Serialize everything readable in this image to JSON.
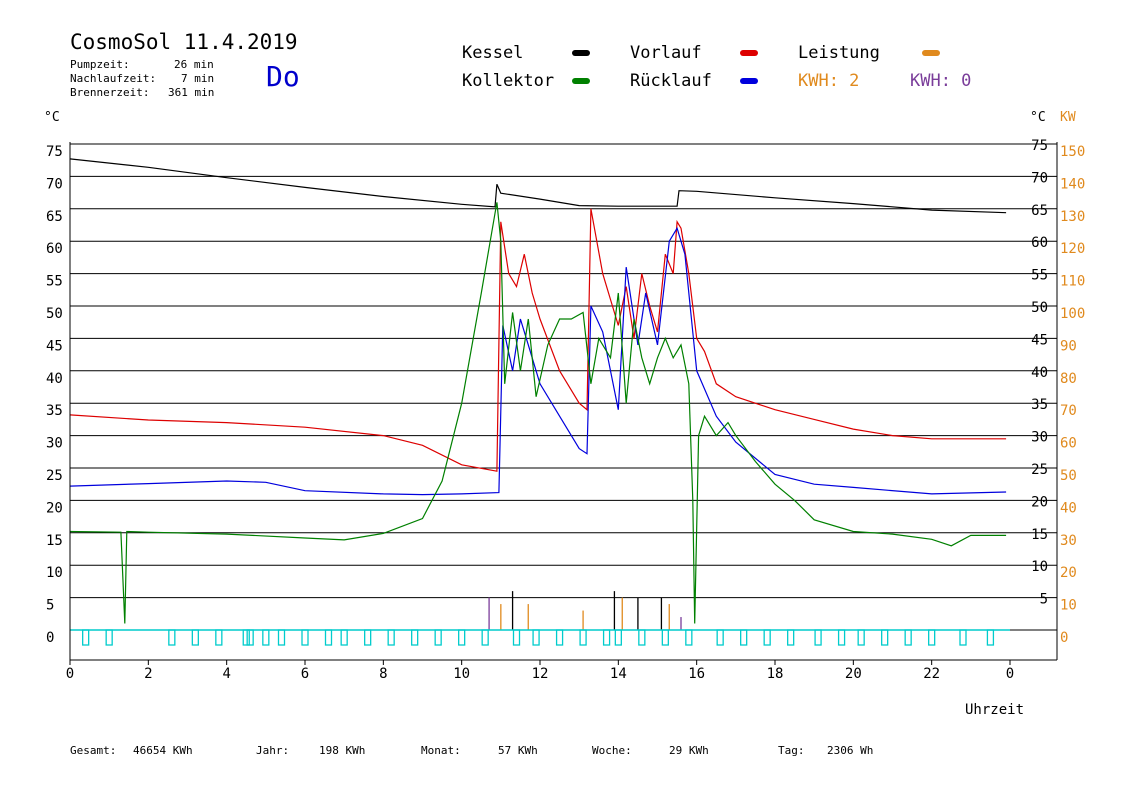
{
  "header": {
    "title": "CosmoSol 11.4.2019",
    "day": "Do",
    "stats": [
      {
        "label": "Pumpzeit:",
        "value": "26 min"
      },
      {
        "label": "Nachlaufzeit:",
        "value": "7 min"
      },
      {
        "label": "Brennerzeit:",
        "value": "361 min"
      }
    ]
  },
  "legend": {
    "kessel": "Kessel",
    "vorlauf": "Vorlauf",
    "leistung": "Leistung",
    "kollektor": "Kollektor",
    "ruecklauf": "Rücklauf",
    "kwh_orange": "KWH: 2",
    "kwh_purple": "KWH: 0"
  },
  "colors": {
    "kessel": "#000000",
    "vorlauf": "#dd0000",
    "leistung": "#e08a1e",
    "kollektor": "#008000",
    "ruecklauf": "#0000dd",
    "purple": "#7a3d9a",
    "pump": "#00cccc"
  },
  "axis_units": {
    "left": "°C",
    "right_c": "°C",
    "right_kw": "KW"
  },
  "footer": {
    "gesamt": {
      "label": "Gesamt:",
      "value": "46654 KWh"
    },
    "jahr": {
      "label": "Jahr:",
      "value": "198 KWh"
    },
    "monat": {
      "label": "Monat:",
      "value": "57 KWh"
    },
    "woche": {
      "label": "Woche:",
      "value": "29 KWh"
    },
    "tag": {
      "label": "Tag:",
      "value": "2306 Wh"
    }
  },
  "chart_data": {
    "type": "line",
    "title": "CosmoSol 11.4.2019",
    "xlabel": "Uhrzeit",
    "ylabel": "°C",
    "xlim": [
      0,
      24
    ],
    "ylim": [
      0,
      75
    ],
    "y2lim": [
      0,
      150
    ],
    "y2label": "KW",
    "x_ticks": [
      "0",
      "2",
      "4",
      "6",
      "8",
      "10",
      "12",
      "14",
      "16",
      "18",
      "20",
      "22",
      "0"
    ],
    "y_ticks_left": [
      "0",
      "5",
      "10",
      "15",
      "20",
      "25",
      "30",
      "35",
      "40",
      "45",
      "50",
      "55",
      "60",
      "65",
      "70",
      "75"
    ],
    "y_ticks_right_c": [
      "5",
      "10",
      "15",
      "20",
      "25",
      "30",
      "35",
      "40",
      "45",
      "50",
      "55",
      "60",
      "65",
      "70",
      "75"
    ],
    "y_ticks_right_kw": [
      "0",
      "10",
      "20",
      "30",
      "40",
      "50",
      "60",
      "70",
      "80",
      "90",
      "100",
      "110",
      "120",
      "130",
      "140",
      "150"
    ],
    "grid": true,
    "series": [
      {
        "name": "Kessel",
        "color": "#000000",
        "points": [
          [
            0,
            72.7
          ],
          [
            2,
            71.4
          ],
          [
            4,
            69.8
          ],
          [
            6,
            68.3
          ],
          [
            8,
            66.9
          ],
          [
            10,
            65.7
          ],
          [
            10.85,
            65.3
          ],
          [
            10.9,
            68.8
          ],
          [
            11,
            67.4
          ],
          [
            12,
            66.5
          ],
          [
            13,
            65.5
          ],
          [
            14,
            65.4
          ],
          [
            15,
            65.4
          ],
          [
            15.5,
            65.4
          ],
          [
            15.55,
            67.8
          ],
          [
            16,
            67.7
          ],
          [
            18,
            66.7
          ],
          [
            20,
            65.8
          ],
          [
            22,
            64.8
          ],
          [
            23.9,
            64.4
          ]
        ]
      },
      {
        "name": "Vorlauf",
        "color": "#dd0000",
        "points": [
          [
            0,
            33.2
          ],
          [
            2,
            32.4
          ],
          [
            4,
            32.0
          ],
          [
            6,
            31.3
          ],
          [
            8,
            30.0
          ],
          [
            9,
            28.5
          ],
          [
            10,
            25.5
          ],
          [
            10.9,
            24.5
          ],
          [
            11,
            63
          ],
          [
            11.2,
            55
          ],
          [
            11.4,
            53
          ],
          [
            11.6,
            58
          ],
          [
            11.8,
            52
          ],
          [
            12,
            48
          ],
          [
            12.5,
            40
          ],
          [
            13,
            35
          ],
          [
            13.2,
            34
          ],
          [
            13.3,
            65
          ],
          [
            13.6,
            55
          ],
          [
            13.9,
            49
          ],
          [
            14,
            47
          ],
          [
            14.2,
            53
          ],
          [
            14.4,
            45
          ],
          [
            14.6,
            55
          ],
          [
            14.8,
            50
          ],
          [
            15,
            46
          ],
          [
            15.2,
            58
          ],
          [
            15.4,
            55
          ],
          [
            15.5,
            63
          ],
          [
            15.6,
            62
          ],
          [
            15.8,
            55
          ],
          [
            16,
            45
          ],
          [
            16.2,
            43
          ],
          [
            16.5,
            38
          ],
          [
            17,
            36
          ],
          [
            18,
            34
          ],
          [
            19,
            32.5
          ],
          [
            20,
            31
          ],
          [
            21,
            30
          ],
          [
            22,
            29.5
          ],
          [
            23.9,
            29.5
          ]
        ]
      },
      {
        "name": "Rücklauf",
        "color": "#0000dd",
        "points": [
          [
            0,
            22.2
          ],
          [
            2,
            22.6
          ],
          [
            4,
            23.0
          ],
          [
            5,
            22.8
          ],
          [
            6,
            21.5
          ],
          [
            8,
            21.0
          ],
          [
            9,
            20.9
          ],
          [
            10,
            21.0
          ],
          [
            10.95,
            21.2
          ],
          [
            11.05,
            47
          ],
          [
            11.3,
            40
          ],
          [
            11.5,
            48
          ],
          [
            11.7,
            44
          ],
          [
            12,
            38
          ],
          [
            12.5,
            33
          ],
          [
            13,
            28
          ],
          [
            13.2,
            27.2
          ],
          [
            13.3,
            50
          ],
          [
            13.6,
            46
          ],
          [
            14,
            34
          ],
          [
            14.2,
            56
          ],
          [
            14.5,
            44
          ],
          [
            14.7,
            52
          ],
          [
            15,
            44
          ],
          [
            15.3,
            60
          ],
          [
            15.5,
            62
          ],
          [
            15.7,
            58
          ],
          [
            16,
            40
          ],
          [
            16.5,
            33
          ],
          [
            17,
            29
          ],
          [
            18,
            24
          ],
          [
            19,
            22.5
          ],
          [
            20,
            22
          ],
          [
            22,
            21
          ],
          [
            23.9,
            21.3
          ]
        ]
      },
      {
        "name": "Kollektor",
        "color": "#008000",
        "points": [
          [
            0,
            15.2
          ],
          [
            1.3,
            15.1
          ],
          [
            1.4,
            1
          ],
          [
            1.45,
            15.2
          ],
          [
            2,
            15.1
          ],
          [
            4,
            14.8
          ],
          [
            6,
            14.2
          ],
          [
            7,
            13.9
          ],
          [
            8,
            14.9
          ],
          [
            9,
            17.2
          ],
          [
            9.5,
            23
          ],
          [
            10,
            35
          ],
          [
            10.5,
            52
          ],
          [
            10.9,
            66
          ],
          [
            11,
            60
          ],
          [
            11.1,
            38
          ],
          [
            11.3,
            49
          ],
          [
            11.5,
            40
          ],
          [
            11.7,
            48
          ],
          [
            11.9,
            36
          ],
          [
            12.2,
            44
          ],
          [
            12.5,
            48
          ],
          [
            12.8,
            48
          ],
          [
            13.1,
            49
          ],
          [
            13.3,
            38
          ],
          [
            13.5,
            45
          ],
          [
            13.8,
            42
          ],
          [
            14,
            52
          ],
          [
            14.2,
            35
          ],
          [
            14.4,
            48
          ],
          [
            14.6,
            42
          ],
          [
            14.8,
            38
          ],
          [
            15,
            42
          ],
          [
            15.2,
            45
          ],
          [
            15.4,
            42
          ],
          [
            15.6,
            44
          ],
          [
            15.8,
            38
          ],
          [
            15.9,
            20
          ],
          [
            15.95,
            1
          ],
          [
            16.05,
            30
          ],
          [
            16.2,
            33
          ],
          [
            16.5,
            30
          ],
          [
            16.8,
            32
          ],
          [
            17,
            30
          ],
          [
            17.5,
            26
          ],
          [
            18,
            22.5
          ],
          [
            18.5,
            20
          ],
          [
            19,
            17
          ],
          [
            20,
            15.2
          ],
          [
            21,
            14.8
          ],
          [
            22,
            14
          ],
          [
            22.5,
            13
          ],
          [
            23,
            14.6
          ],
          [
            23.9,
            14.6
          ]
        ]
      }
    ]
  }
}
